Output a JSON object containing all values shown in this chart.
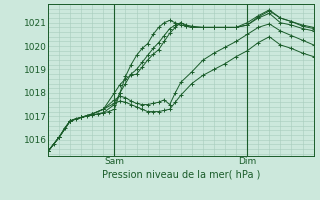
{
  "bg_color": "#cce8dc",
  "grid_color": "#a8ccbc",
  "line_color": "#1a5c2a",
  "xlabel": "Pression niveau de la mer( hPa )",
  "ylim": [
    1015.3,
    1021.8
  ],
  "yticks": [
    1016,
    1017,
    1018,
    1019,
    1020,
    1021
  ],
  "xmin": 0,
  "xmax": 96,
  "sam_x": 24,
  "dim_x": 72,
  "series": [
    [
      0,
      1015.5,
      2,
      1015.8,
      4,
      1016.1,
      6,
      1016.5,
      8,
      1016.8,
      10,
      1016.9,
      12,
      1016.95,
      14,
      1017.0,
      16,
      1017.05,
      18,
      1017.1,
      20,
      1017.15,
      22,
      1017.2,
      24,
      1017.3,
      26,
      1018.0,
      28,
      1018.7,
      30,
      1019.2,
      32,
      1019.6,
      34,
      1019.9,
      36,
      1020.1,
      38,
      1020.5,
      40,
      1020.8,
      42,
      1021.0,
      44,
      1021.1,
      46,
      1021.0,
      48,
      1020.9,
      50,
      1020.85,
      52,
      1020.8,
      56,
      1020.8,
      60,
      1020.8,
      64,
      1020.8,
      68,
      1020.8,
      72,
      1020.9,
      76,
      1021.25,
      80,
      1021.5,
      84,
      1021.2,
      88,
      1021.05,
      92,
      1020.85,
      96,
      1020.75
    ],
    [
      0,
      1015.5,
      4,
      1016.1,
      8,
      1016.8,
      12,
      1016.95,
      16,
      1017.05,
      20,
      1017.15,
      24,
      1017.5,
      26,
      1018.0,
      28,
      1018.4,
      30,
      1018.8,
      32,
      1019.0,
      34,
      1019.3,
      36,
      1019.6,
      38,
      1019.9,
      40,
      1020.15,
      42,
      1020.45,
      44,
      1020.75,
      46,
      1020.9,
      48,
      1021.0,
      50,
      1020.9,
      52,
      1020.85,
      56,
      1020.8,
      60,
      1020.8,
      64,
      1020.8,
      68,
      1020.8,
      72,
      1021.0,
      76,
      1021.3,
      80,
      1021.55,
      84,
      1021.2,
      88,
      1021.05,
      92,
      1020.9,
      96,
      1020.8
    ],
    [
      0,
      1015.5,
      4,
      1016.1,
      8,
      1016.8,
      12,
      1016.95,
      16,
      1017.1,
      20,
      1017.3,
      24,
      1018.0,
      26,
      1018.35,
      28,
      1018.6,
      30,
      1018.75,
      32,
      1018.8,
      34,
      1019.1,
      36,
      1019.4,
      38,
      1019.65,
      40,
      1019.85,
      42,
      1020.2,
      44,
      1020.55,
      46,
      1020.8,
      48,
      1021.0,
      50,
      1020.85,
      52,
      1020.8,
      56,
      1020.8,
      60,
      1020.8,
      64,
      1020.8,
      68,
      1020.8,
      72,
      1020.9,
      76,
      1021.2,
      80,
      1021.4,
      84,
      1021.0,
      88,
      1020.9,
      92,
      1020.75,
      96,
      1020.65
    ],
    [
      0,
      1015.5,
      4,
      1016.1,
      8,
      1016.8,
      12,
      1016.95,
      16,
      1017.1,
      20,
      1017.3,
      24,
      1017.7,
      26,
      1017.85,
      28,
      1017.8,
      30,
      1017.65,
      32,
      1017.55,
      34,
      1017.5,
      36,
      1017.5,
      38,
      1017.55,
      40,
      1017.6,
      42,
      1017.7,
      44,
      1017.5,
      46,
      1018.0,
      48,
      1018.45,
      52,
      1018.9,
      56,
      1019.4,
      60,
      1019.7,
      64,
      1019.95,
      68,
      1020.2,
      72,
      1020.5,
      76,
      1020.8,
      80,
      1020.95,
      84,
      1020.65,
      88,
      1020.45,
      92,
      1020.25,
      96,
      1020.05
    ],
    [
      0,
      1015.5,
      4,
      1016.1,
      8,
      1016.8,
      12,
      1016.95,
      16,
      1017.1,
      20,
      1017.3,
      24,
      1017.55,
      26,
      1017.65,
      28,
      1017.6,
      30,
      1017.5,
      32,
      1017.4,
      34,
      1017.3,
      36,
      1017.2,
      38,
      1017.2,
      40,
      1017.2,
      42,
      1017.25,
      44,
      1017.3,
      46,
      1017.6,
      48,
      1017.9,
      52,
      1018.4,
      56,
      1018.75,
      60,
      1019.0,
      64,
      1019.25,
      68,
      1019.55,
      72,
      1019.8,
      76,
      1020.15,
      80,
      1020.4,
      84,
      1020.05,
      88,
      1019.9,
      92,
      1019.7,
      96,
      1019.55
    ]
  ]
}
